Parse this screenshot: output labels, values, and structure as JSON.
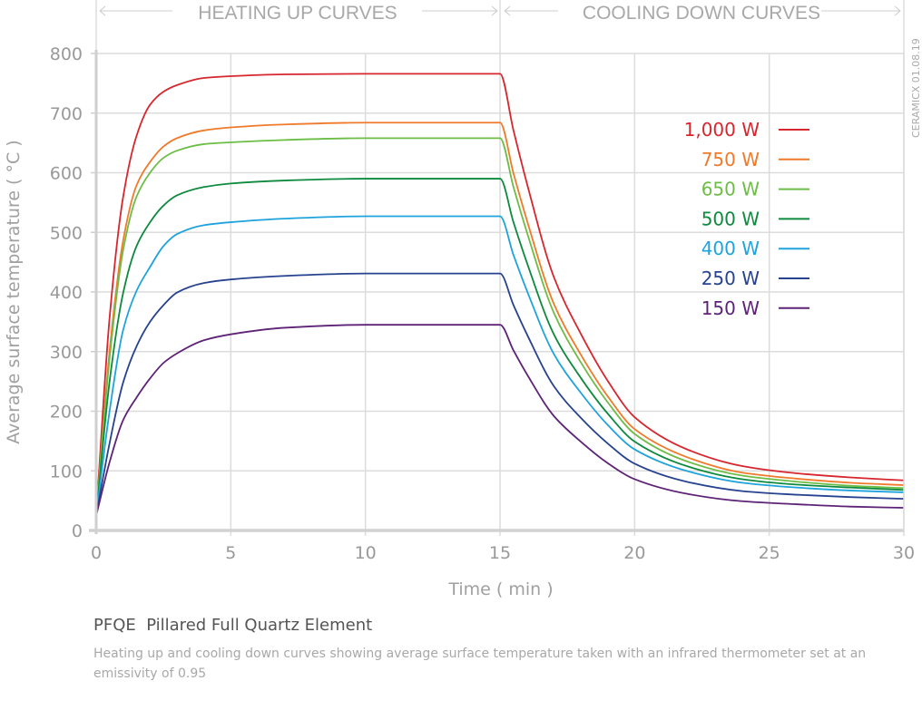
{
  "chart_data": {
    "type": "line",
    "title": "PFQE  Pillared Full Quartz Element",
    "caption": "Heating up and cooling down curves showing average surface temperature taken with an infrared thermometer set at an emissivity of 0.95",
    "section_labels": [
      "HEATING UP CURVES",
      "COOLING DOWN CURVES"
    ],
    "watermark": "CERAMICX 01.08.19",
    "xlabel": "Time ( min )",
    "ylabel": "Average surface temperature ( °C )",
    "xlim": [
      0,
      30
    ],
    "ylim": [
      0,
      800
    ],
    "xticks": [
      0,
      5,
      10,
      15,
      20,
      25,
      30
    ],
    "yticks": [
      0,
      100,
      200,
      300,
      400,
      500,
      600,
      700,
      800
    ],
    "grid": true,
    "legend_position": "top-right",
    "x": [
      0,
      0.5,
      1,
      1.5,
      2,
      2.5,
      3,
      4,
      5,
      7,
      10,
      15,
      15.5,
      16,
      17,
      18,
      19,
      20,
      22,
      24,
      26,
      28,
      30
    ],
    "series": [
      {
        "name": "1,000 W",
        "color": "#d7262e",
        "values": [
          25,
          358,
          559,
          662,
          714,
          736,
          747,
          759,
          762,
          765,
          766,
          766,
          671,
          582,
          425,
          330,
          251,
          190,
          135,
          108,
          96,
          89,
          84
        ]
      },
      {
        "name": "750 W",
        "color": "#f07a2a",
        "values": [
          25,
          302,
          486,
          579,
          618,
          644,
          658,
          671,
          676,
          681,
          684,
          684,
          599,
          520,
          380,
          295,
          225,
          170,
          122,
          97,
          87,
          80,
          76
        ]
      },
      {
        "name": "650 W",
        "color": "#6cbd45",
        "values": [
          25,
          290,
          470,
          560,
          600,
          625,
          637,
          648,
          651,
          655,
          658,
          658,
          576,
          500,
          365,
          282,
          215,
          162,
          115,
          92,
          82,
          75,
          71
        ]
      },
      {
        "name": "500 W",
        "color": "#0e8a3e",
        "values": [
          25,
          251,
          398,
          477,
          517,
          545,
          562,
          576,
          582,
          587,
          590,
          590,
          517,
          449,
          329,
          256,
          196,
          149,
          107,
          86,
          77,
          72,
          68
        ]
      },
      {
        "name": "400 W",
        "color": "#1ea3dc",
        "values": [
          25,
          201,
          336,
          402,
          442,
          477,
          497,
          512,
          517,
          523,
          527,
          527,
          462,
          402,
          296,
          231,
          177,
          136,
          99,
          80,
          72,
          67,
          64
        ]
      },
      {
        "name": "250 W",
        "color": "#27438f",
        "values": [
          25,
          147,
          248,
          309,
          350,
          378,
          399,
          415,
          421,
          427,
          431,
          431,
          378,
          329,
          242,
          189,
          146,
          112,
          81,
          66,
          60,
          56,
          53
        ]
      },
      {
        "name": "150 W",
        "color": "#5e2377",
        "values": [
          25,
          115,
          185,
          223,
          255,
          281,
          297,
          319,
          329,
          340,
          345,
          345,
          302,
          262,
          192,
          149,
          113,
          86,
          61,
          49,
          44,
          40,
          38
        ]
      }
    ]
  }
}
